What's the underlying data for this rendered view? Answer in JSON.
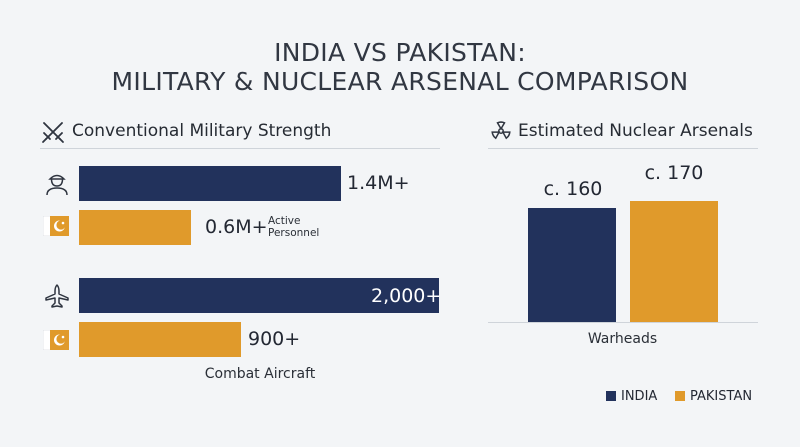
{
  "title_line1": "INDIA VS PAKISTAN:",
  "title_line2": "MILITARY & NUCLEAR ARSENAL COMPARISON",
  "chart_data": [
    {
      "type": "bar",
      "orientation": "horizontal",
      "title": "Conventional Military Strength",
      "groups": [
        {
          "label": "Active Personnel",
          "series": [
            {
              "name": "INDIA",
              "value": 1400000,
              "value_label": "1.4M+",
              "icon": "soldier-icon"
            },
            {
              "name": "PAKISTAN",
              "value": 600000,
              "value_label": "0.6M+",
              "icon": "pakistan-flag-icon"
            }
          ]
        },
        {
          "label": "Combat Aircraft",
          "series": [
            {
              "name": "INDIA",
              "value": 2000,
              "value_label": "2,000+",
              "icon": "airplane-icon"
            },
            {
              "name": "PAKISTAN",
              "value": 900,
              "value_label": "900+",
              "icon": "pakistan-flag-icon"
            }
          ]
        }
      ],
      "header_icon": "crossed-swords-icon"
    },
    {
      "type": "bar",
      "title": "Estimated Nuclear Arsenals",
      "header_icon": "radiation-icon",
      "xlabel": "Warheads",
      "categories": [
        "INDIA",
        "PAKISTAN"
      ],
      "values": [
        160,
        170
      ],
      "value_labels": [
        "c. 160",
        "c. 170"
      ]
    }
  ],
  "legend": [
    {
      "name": "INDIA",
      "color": "#22325c"
    },
    {
      "name": "PAKISTAN",
      "color": "#e09a2b"
    }
  ],
  "colors": {
    "india": "#22325c",
    "pakistan": "#e09a2b",
    "background": "#f3f5f7"
  }
}
